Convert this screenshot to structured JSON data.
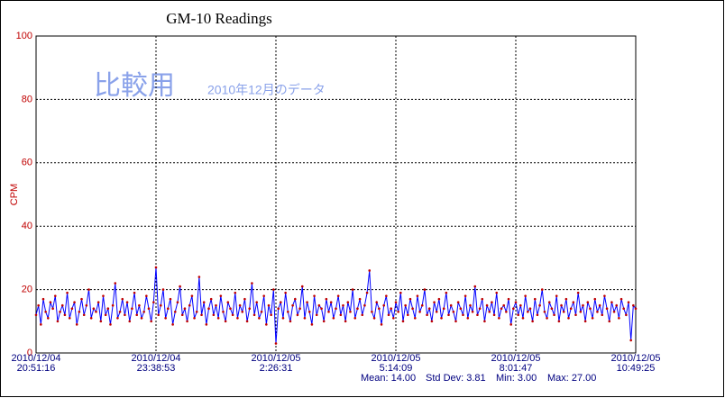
{
  "chart_data": {
    "type": "line",
    "title": "GM-10 Readings",
    "y_label": "CPM",
    "annotations": [
      "比較用",
      "2010年12月のデータ"
    ],
    "stats": [
      "Mean: 14.00",
      "Std Dev: 3.81",
      "Min: 3.00",
      "Max: 27.00"
    ],
    "line_color": "#0000ff",
    "point_color": "#c00000",
    "grid": true,
    "ylim": [
      0,
      100
    ],
    "yticks": [
      0,
      20,
      40,
      60,
      80,
      100
    ],
    "xlim": [
      0,
      250
    ],
    "xticks": [
      {
        "value": 0,
        "label": [
          "2010/12/04",
          "20:51:16"
        ]
      },
      {
        "value": 50,
        "label": [
          "2010/12/04",
          "23:38:53"
        ]
      },
      {
        "value": 100,
        "label": [
          "2010/12/05",
          "2:26:31"
        ]
      },
      {
        "value": 150,
        "label": [
          "2010/12/05",
          "5:14:09"
        ]
      },
      {
        "value": 200,
        "label": [
          "2010/12/05",
          "8:01:47"
        ]
      },
      {
        "value": 250,
        "label": [
          "2010/12/05",
          "10:49:25"
        ]
      }
    ],
    "values": [
      12,
      15,
      9,
      17,
      13,
      11,
      16,
      14,
      18,
      10,
      13,
      15,
      12,
      19,
      11,
      14,
      16,
      9,
      13,
      17,
      12,
      15,
      20,
      11,
      14,
      13,
      16,
      10,
      18,
      12,
      14,
      9,
      15,
      22,
      11,
      13,
      17,
      12,
      16,
      10,
      14,
      19,
      12,
      15,
      11,
      13,
      18,
      14,
      10,
      16,
      27,
      12,
      15,
      20,
      11,
      14,
      17,
      9,
      13,
      16,
      21,
      12,
      14,
      10,
      15,
      18,
      11,
      13,
      24,
      12,
      16,
      9,
      14,
      17,
      12,
      15,
      11,
      18,
      13,
      10,
      16,
      14,
      12,
      19,
      11,
      15,
      13,
      17,
      10,
      14,
      22,
      12,
      16,
      11,
      13,
      18,
      9,
      15,
      12,
      20,
      3,
      14,
      16,
      11,
      19,
      13,
      10,
      15,
      17,
      12,
      14,
      21,
      11,
      16,
      13,
      9,
      18,
      12,
      15,
      14,
      10,
      17,
      13,
      16,
      11,
      14,
      18,
      12,
      15,
      10,
      16,
      13,
      20,
      11,
      14,
      17,
      12,
      15,
      19,
      26,
      13,
      11,
      16,
      14,
      9,
      15,
      18,
      12,
      14,
      11,
      16,
      13,
      19,
      10,
      15,
      12,
      17,
      14,
      11,
      18,
      13,
      15,
      20,
      12,
      14,
      10,
      16,
      13,
      17,
      11,
      14,
      19,
      12,
      15,
      13,
      10,
      16,
      14,
      12,
      18,
      11,
      15,
      13,
      21,
      12,
      14,
      17,
      10,
      15,
      13,
      16,
      12,
      19,
      11,
      14,
      15,
      13,
      17,
      9,
      14,
      16,
      12,
      15,
      11,
      18,
      13,
      14,
      10,
      17,
      12,
      15,
      20,
      13,
      11,
      16,
      14,
      12,
      18,
      10,
      15,
      13,
      17,
      11,
      14,
      16,
      12,
      19,
      13,
      15,
      10,
      16,
      14,
      11,
      17,
      13,
      15,
      12,
      18,
      14,
      10,
      16,
      13,
      15,
      11,
      17,
      14,
      12,
      16,
      4,
      15,
      14
    ]
  }
}
